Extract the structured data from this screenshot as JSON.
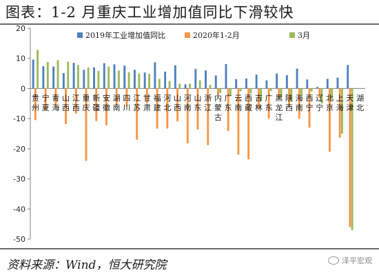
{
  "header": {
    "title": "图表：1-2 月重庆工业增加值同比下滑较快"
  },
  "footer": {
    "source": "资料来源：Wind，恒大研究院",
    "watermark": "泽平宏观"
  },
  "chart_data": {
    "type": "bar",
    "ylim": [
      -50,
      20
    ],
    "yticks": [
      -50,
      -40,
      -30,
      -20,
      -10,
      0,
      10,
      20
    ],
    "legend_position": "top-right",
    "categories": [
      "贵州",
      "宁夏",
      "青海",
      "山西",
      "江西",
      "重庆",
      "新疆",
      "安徽",
      "湖南",
      "四川",
      "江苏",
      "甘肃",
      "福建",
      "河北",
      "山西",
      "河南",
      "山东",
      "浙江",
      "内蒙古",
      "广东",
      "云南",
      "西藏",
      "吉林",
      "广东",
      "黑龙江",
      "陕西",
      "海南",
      "西宁",
      "辽宁",
      "北京",
      "上海",
      "天津",
      "湖北"
    ],
    "series": [
      {
        "name": "2019年工业增加值同比",
        "color": "#4f81bd",
        "values": [
          9.6,
          7.4,
          7.3,
          5.1,
          8.5,
          6.2,
          7.0,
          8.4,
          8.0,
          7.6,
          6.2,
          5.3,
          8.7,
          5.6,
          7.7,
          1.4,
          6.5,
          6.0,
          4.3,
          8.1,
          3.1,
          3.3,
          4.6,
          2.7,
          5.0,
          4.4,
          6.6,
          3.0,
          0.5,
          3.2,
          3.6,
          7.8,
          0
        ]
      },
      {
        "name": "2020年1-2月",
        "color": "#f79646",
        "values": [
          -10.5,
          -7.0,
          -5.8,
          -11.8,
          -8.3,
          -24.0,
          -10.8,
          -12.2,
          -5.4,
          -6.0,
          -17.0,
          -4.8,
          -13.3,
          -13.3,
          -10.9,
          -18.2,
          -13.6,
          -18.8,
          -2.0,
          -14.1,
          -22.0,
          -23.5,
          -6.7,
          -10.0,
          -3.3,
          -5.8,
          -10.0,
          -13.0,
          -3.1,
          -21.0,
          -16.3,
          -46.0,
          0
        ]
      },
      {
        "name": "3月",
        "color": "#9bbb59",
        "values": [
          12.8,
          8.8,
          9.4,
          8.9,
          7.8,
          7.0,
          5.8,
          7.3,
          6.0,
          5.4,
          5.0,
          4.9,
          3.2,
          2.5,
          1.6,
          1.6,
          2.7,
          1.2,
          -1.5,
          -2.5,
          -0.9,
          -1.6,
          -4.1,
          -0.8,
          -3.0,
          -4.4,
          -2.2,
          -1.0,
          -5.0,
          -3.8,
          -15.0,
          -47.0,
          0
        ]
      }
    ]
  }
}
